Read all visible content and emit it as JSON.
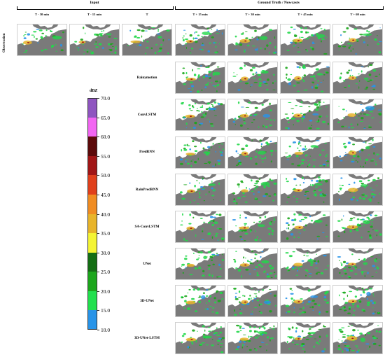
{
  "header": {
    "input_group": "Input",
    "output_group": "Ground Truth / Nowcasts",
    "columns": [
      "T - 30 min",
      "T - 15 min",
      "T",
      "T + 15 min",
      "T + 30 min",
      "T + 45 min",
      "T + 60 min"
    ]
  },
  "rows": {
    "observation": "Observation",
    "models": [
      "Rainymotion",
      "ConvLSTM",
      "PredRNN",
      "RainPredRNN",
      "SA-ConvLSTM",
      "UNet",
      "3D-UNet",
      "3D-UNet-LSTM"
    ]
  },
  "colorbar": {
    "unit": "dBZ",
    "ticks": [
      "70.0",
      "65.0",
      "60.0",
      "55.0",
      "50.0",
      "45.0",
      "40.0",
      "35.0",
      "30.0",
      "25.0",
      "20.0",
      "15.0",
      "10.0"
    ],
    "colors": [
      "#8f55c0",
      "#f266f2",
      "#5c0a0a",
      "#a11616",
      "#e0401c",
      "#f08c22",
      "#e8b42a",
      "#f4f434",
      "#146e14",
      "#1ca61c",
      "#22e04e",
      "#2894e8"
    ]
  },
  "map_colors": {
    "land": "#7a7a7a",
    "sea": "#ffffff",
    "light_rain": "#22d84a",
    "moderate_rain": "#1ca61c",
    "heavy_rain": "#e8b42a",
    "very_heavy_rain": "#a11616",
    "weak_echo": "#2894e8"
  }
}
